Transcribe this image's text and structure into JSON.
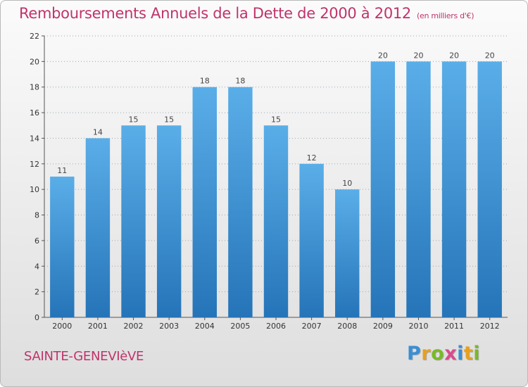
{
  "header": {
    "title": "Remboursements Annuels de la Dette de 2000 à 2012",
    "unit": "(en milliers d'€)"
  },
  "footer": {
    "commune": "SAINTE-GENEVIèVE",
    "logo": [
      "P",
      "r",
      "o",
      "x",
      "i",
      "t",
      "i"
    ],
    "logo_colors": [
      "#3a8fd6",
      "#e8a01d",
      "#7ab929",
      "#d94a8c",
      "#3a8fd6",
      "#e8a01d",
      "#7ab929"
    ]
  },
  "colors": {
    "bar_light": "#5aaee8",
    "bar_dark": "#2574b8",
    "title": "#c0336b",
    "grid": "#9aa7b4"
  },
  "chart_data": {
    "type": "bar",
    "title": "Remboursements Annuels de la Dette de 2000 à 2012",
    "subtitle": "(en milliers d'€)",
    "categories": [
      "2000",
      "2001",
      "2002",
      "2003",
      "2004",
      "2005",
      "2006",
      "2007",
      "2008",
      "2009",
      "2010",
      "2011",
      "2012"
    ],
    "values": [
      11,
      14,
      15,
      15,
      18,
      18,
      15,
      12,
      10,
      20,
      20,
      20,
      20
    ],
    "ylim": [
      0,
      22
    ],
    "yticks": [
      0,
      2,
      4,
      6,
      8,
      10,
      12,
      14,
      16,
      18,
      20,
      22
    ],
    "grid": true,
    "data_labels": true
  }
}
